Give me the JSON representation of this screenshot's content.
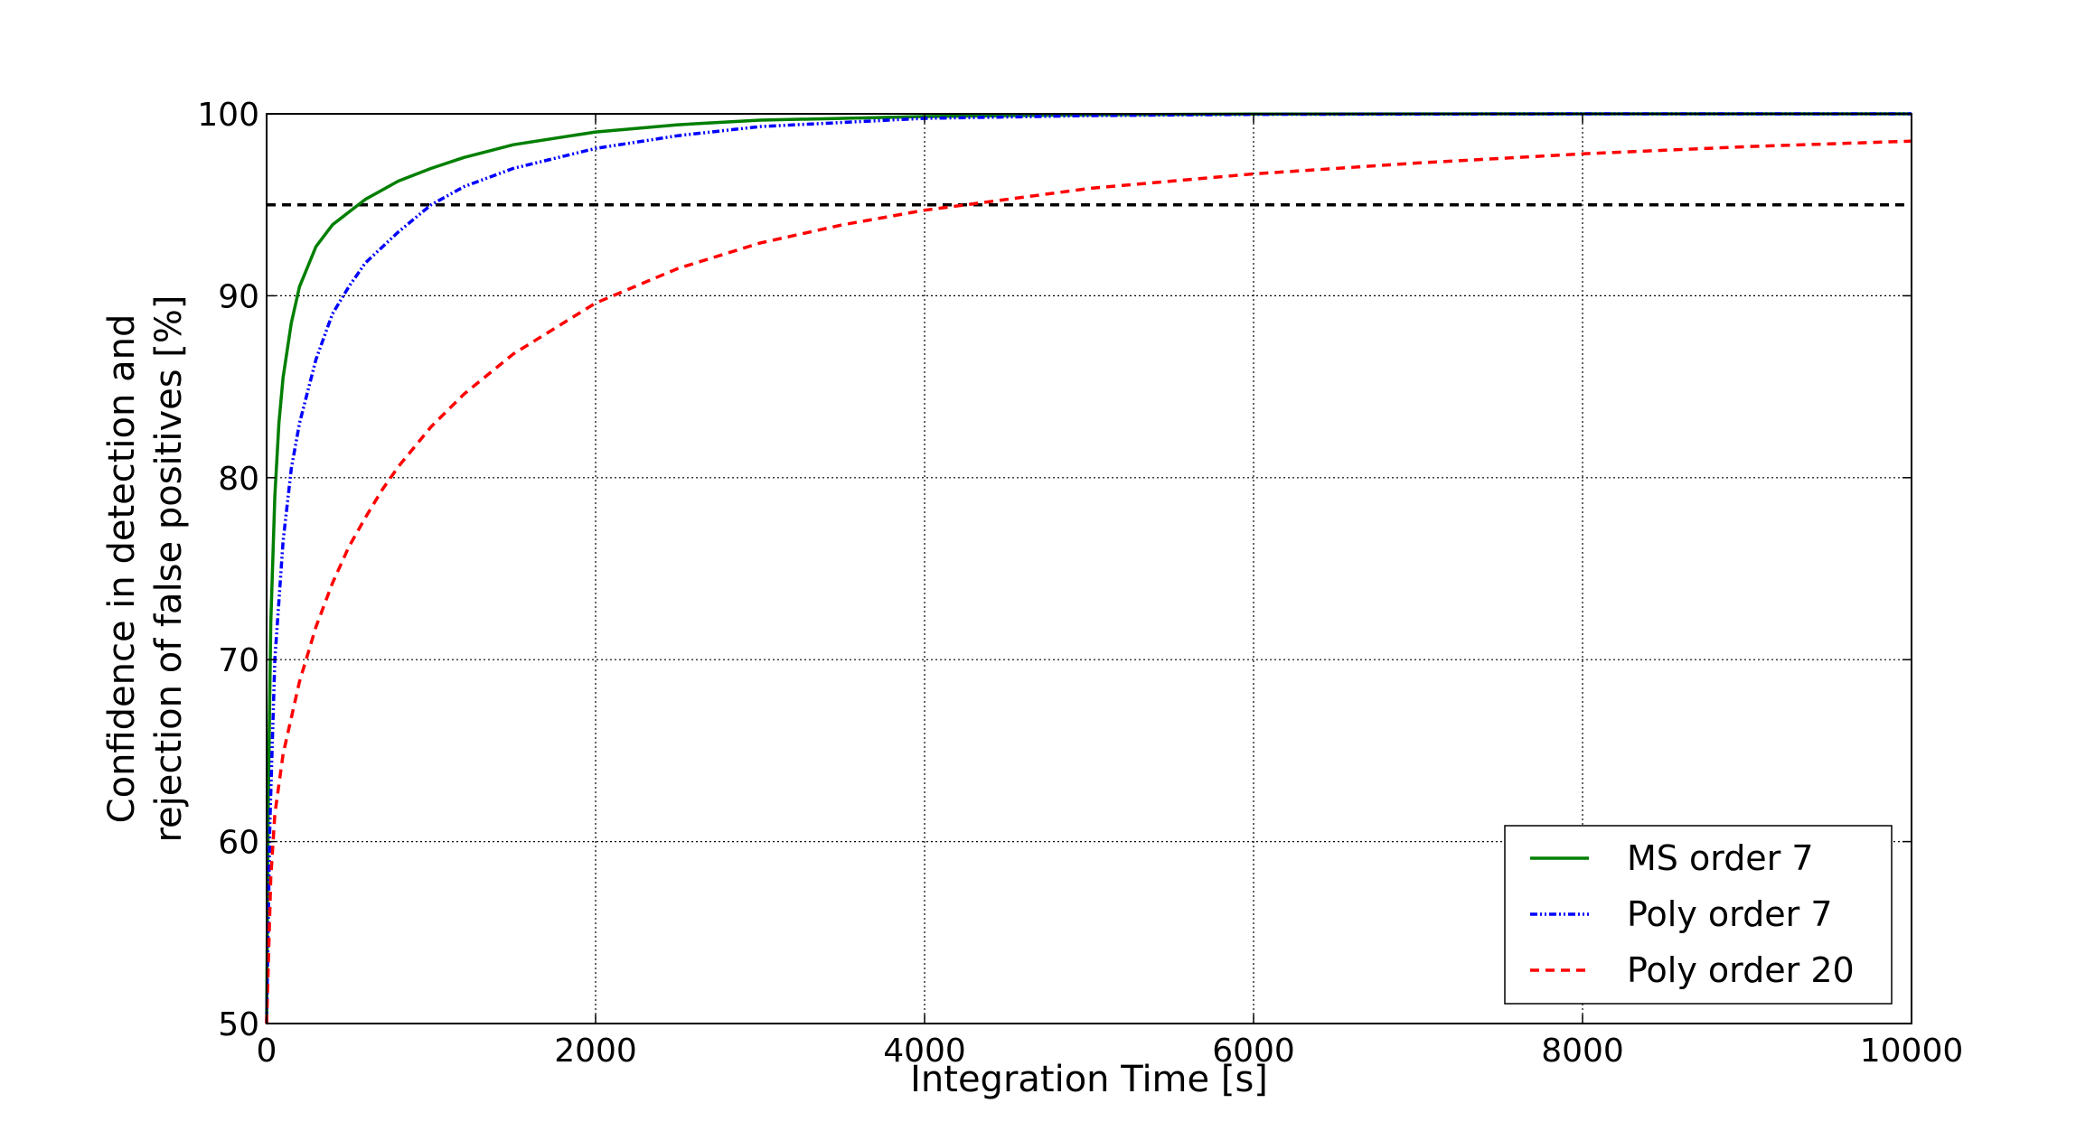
{
  "chart_data": {
    "type": "line",
    "title": "",
    "xlabel": "Integration Time [s]",
    "ylabel_line1": "Confidence in detection and",
    "ylabel_line2": "rejection of false positives [%]",
    "xlim": [
      0,
      10000
    ],
    "ylim": [
      50,
      100
    ],
    "x_ticks": [
      0,
      2000,
      4000,
      6000,
      8000,
      10000
    ],
    "x_tick_labels": [
      "0",
      "2000",
      "4000",
      "6000",
      "8000",
      "10000"
    ],
    "y_ticks": [
      50,
      60,
      70,
      80,
      90,
      100
    ],
    "y_tick_labels": [
      "50",
      "60",
      "70",
      "80",
      "90",
      "100"
    ],
    "grid": true,
    "legend_position": "lower-right",
    "threshold": {
      "y": 95,
      "color": "#000000",
      "style": "dashed"
    },
    "series": [
      {
        "name": "MS order 7",
        "color": "#007f00",
        "style": "solid",
        "points": [
          [
            0,
            50
          ],
          [
            10,
            62
          ],
          [
            25,
            72
          ],
          [
            50,
            79
          ],
          [
            75,
            83
          ],
          [
            100,
            85.5
          ],
          [
            150,
            88.5
          ],
          [
            200,
            90.5
          ],
          [
            300,
            92.7
          ],
          [
            400,
            93.9
          ],
          [
            500,
            94.6
          ],
          [
            600,
            95.3
          ],
          [
            700,
            95.8
          ],
          [
            800,
            96.3
          ],
          [
            1000,
            97.0
          ],
          [
            1200,
            97.6
          ],
          [
            1500,
            98.3
          ],
          [
            2000,
            99.0
          ],
          [
            2500,
            99.4
          ],
          [
            3000,
            99.65
          ],
          [
            4000,
            99.85
          ],
          [
            5000,
            99.95
          ],
          [
            6000,
            99.99
          ],
          [
            8000,
            100
          ],
          [
            10000,
            100
          ]
        ]
      },
      {
        "name": "Poly order 7",
        "color": "#0000ff",
        "style": "dashdot",
        "points": [
          [
            0,
            50
          ],
          [
            20,
            61
          ],
          [
            50,
            70
          ],
          [
            100,
            76.5
          ],
          [
            150,
            80.5
          ],
          [
            200,
            83
          ],
          [
            300,
            86.5
          ],
          [
            400,
            89
          ],
          [
            500,
            90.5
          ],
          [
            600,
            91.8
          ],
          [
            800,
            93.5
          ],
          [
            1000,
            95.0
          ],
          [
            1200,
            96
          ],
          [
            1500,
            97.0
          ],
          [
            2000,
            98.1
          ],
          [
            2500,
            98.8
          ],
          [
            3000,
            99.3
          ],
          [
            4000,
            99.75
          ],
          [
            5000,
            99.9
          ],
          [
            6000,
            99.97
          ],
          [
            8000,
            100
          ],
          [
            10000,
            100
          ]
        ]
      },
      {
        "name": "Poly order 20",
        "color": "#ff0000",
        "style": "dashed",
        "points": [
          [
            0,
            50
          ],
          [
            25,
            58
          ],
          [
            50,
            61.5
          ],
          [
            100,
            64.8
          ],
          [
            200,
            68.8
          ],
          [
            300,
            71.8
          ],
          [
            400,
            74.2
          ],
          [
            500,
            76.2
          ],
          [
            600,
            77.8
          ],
          [
            700,
            79.3
          ],
          [
            800,
            80.6
          ],
          [
            1000,
            82.8
          ],
          [
            1200,
            84.6
          ],
          [
            1500,
            86.8
          ],
          [
            2000,
            89.6
          ],
          [
            2500,
            91.5
          ],
          [
            3000,
            92.9
          ],
          [
            3500,
            93.9
          ],
          [
            4000,
            94.7
          ],
          [
            4500,
            95.3
          ],
          [
            5000,
            95.9
          ],
          [
            6000,
            96.7
          ],
          [
            7000,
            97.3
          ],
          [
            8000,
            97.8
          ],
          [
            9000,
            98.2
          ],
          [
            10000,
            98.5
          ]
        ]
      }
    ]
  }
}
